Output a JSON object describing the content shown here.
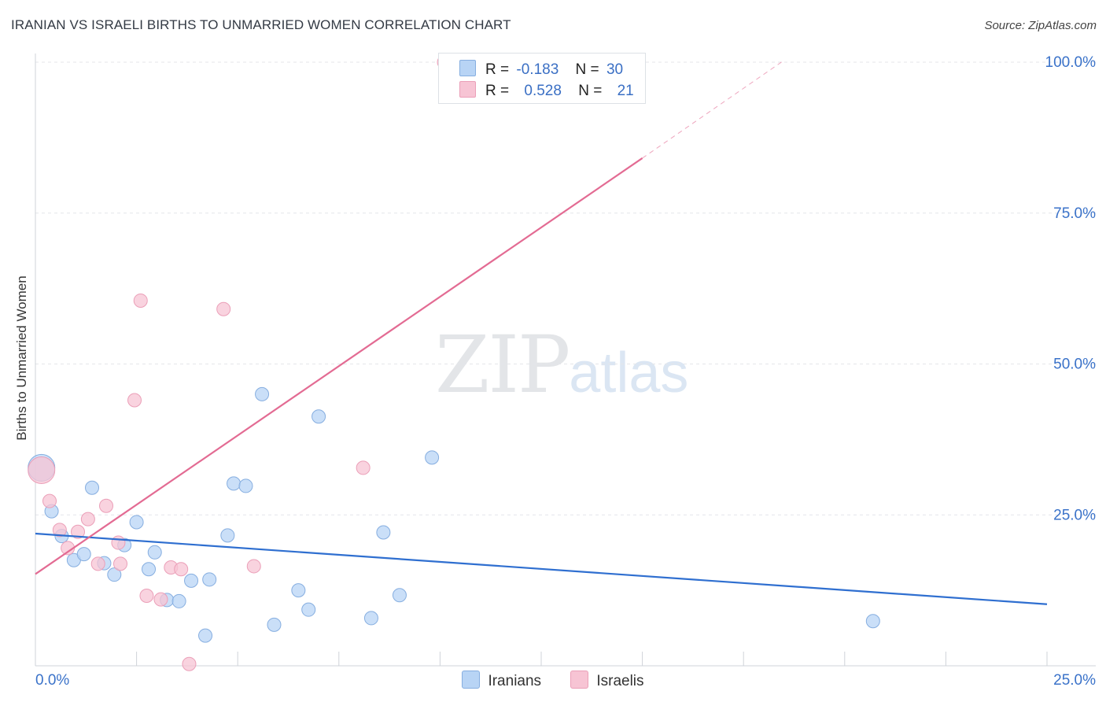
{
  "header": {
    "title": "IRANIAN VS ISRAELI BIRTHS TO UNMARRIED WOMEN CORRELATION CHART",
    "source": "Source: ZipAtlas.com"
  },
  "watermark": {
    "zip": "ZIP",
    "atlas": "atlas"
  },
  "legend": {
    "rows": [
      {
        "r_label": "R =",
        "r_value": "-0.183",
        "n_label": "N =",
        "n_value": "30"
      },
      {
        "r_label": "R =",
        "r_value": "0.528",
        "n_label": "N =",
        "n_value": "21"
      }
    ]
  },
  "bottom_legend": {
    "series1": "Iranians",
    "series2": "Israelis"
  },
  "colors": {
    "iranians_fill": "#b8d4f5",
    "iranians_stroke": "#86aee0",
    "iranians_line": "#2f6fd0",
    "israelis_fill": "#f7c4d4",
    "israelis_stroke": "#eb9fb8",
    "israelis_line": "#e36b93",
    "axis_text": "#3a72c9",
    "grid": "#e4e6ea"
  },
  "chart_data": {
    "type": "scatter",
    "title": "IRANIAN VS ISRAELI BIRTHS TO UNMARRIED WOMEN CORRELATION CHART",
    "xlabel": "",
    "ylabel": "Births to Unmarried Women",
    "xlim": [
      0,
      25
    ],
    "ylim": [
      0,
      100
    ],
    "x_tick_labels": [
      "0.0%",
      "25.0%"
    ],
    "y_ticks": [
      25,
      50,
      75,
      100
    ],
    "y_tick_labels": [
      "25.0%",
      "50.0%",
      "75.0%",
      "100.0%"
    ],
    "series": [
      {
        "name": "Iranians",
        "points": [
          {
            "x": 0.15,
            "y": 32.8,
            "big": true
          },
          {
            "x": 0.4,
            "y": 25.6
          },
          {
            "x": 0.65,
            "y": 21.5
          },
          {
            "x": 0.95,
            "y": 17.5
          },
          {
            "x": 1.2,
            "y": 18.5
          },
          {
            "x": 1.4,
            "y": 29.5
          },
          {
            "x": 1.7,
            "y": 17.0
          },
          {
            "x": 1.95,
            "y": 15.1
          },
          {
            "x": 2.2,
            "y": 20.0
          },
          {
            "x": 2.5,
            "y": 23.8
          },
          {
            "x": 2.8,
            "y": 16.0
          },
          {
            "x": 2.95,
            "y": 18.8
          },
          {
            "x": 3.25,
            "y": 10.9
          },
          {
            "x": 3.55,
            "y": 10.7
          },
          {
            "x": 3.85,
            "y": 14.1
          },
          {
            "x": 4.2,
            "y": 5.0
          },
          {
            "x": 4.3,
            "y": 14.3
          },
          {
            "x": 4.75,
            "y": 21.6
          },
          {
            "x": 4.9,
            "y": 30.2
          },
          {
            "x": 5.2,
            "y": 29.8
          },
          {
            "x": 5.6,
            "y": 45.0
          },
          {
            "x": 5.9,
            "y": 6.8
          },
          {
            "x": 6.5,
            "y": 12.5
          },
          {
            "x": 6.75,
            "y": 9.3
          },
          {
            "x": 7.0,
            "y": 41.3
          },
          {
            "x": 8.3,
            "y": 7.9
          },
          {
            "x": 8.6,
            "y": 22.1
          },
          {
            "x": 9.0,
            "y": 11.7
          },
          {
            "x": 9.8,
            "y": 34.5
          },
          {
            "x": 20.7,
            "y": 7.4
          }
        ],
        "trend": {
          "x": [
            0,
            25
          ],
          "y": [
            21.9,
            10.2
          ]
        }
      },
      {
        "name": "Israelis",
        "points": [
          {
            "x": 0.15,
            "y": 32.4,
            "big": true
          },
          {
            "x": 0.35,
            "y": 27.3
          },
          {
            "x": 0.6,
            "y": 22.5
          },
          {
            "x": 0.8,
            "y": 19.5
          },
          {
            "x": 1.05,
            "y": 22.2
          },
          {
            "x": 1.3,
            "y": 24.3
          },
          {
            "x": 1.55,
            "y": 16.9
          },
          {
            "x": 1.75,
            "y": 26.5
          },
          {
            "x": 2.05,
            "y": 20.4
          },
          {
            "x": 2.1,
            "y": 16.9
          },
          {
            "x": 2.45,
            "y": 44.0
          },
          {
            "x": 2.6,
            "y": 60.5
          },
          {
            "x": 2.75,
            "y": 11.6
          },
          {
            "x": 3.1,
            "y": 11.0
          },
          {
            "x": 3.35,
            "y": 16.3
          },
          {
            "x": 3.6,
            "y": 16.0
          },
          {
            "x": 3.8,
            "y": 0.3
          },
          {
            "x": 4.65,
            "y": 59.1
          },
          {
            "x": 5.4,
            "y": 16.5
          },
          {
            "x": 8.1,
            "y": 32.8
          },
          {
            "x": 10.1,
            "y": 100.0
          }
        ],
        "trend": {
          "x": [
            0,
            15
          ],
          "y": [
            15.2,
            84.1
          ]
        },
        "trend_dashed": {
          "x": [
            15,
            18.5
          ],
          "y": [
            84.1,
            100.3
          ]
        }
      }
    ]
  }
}
